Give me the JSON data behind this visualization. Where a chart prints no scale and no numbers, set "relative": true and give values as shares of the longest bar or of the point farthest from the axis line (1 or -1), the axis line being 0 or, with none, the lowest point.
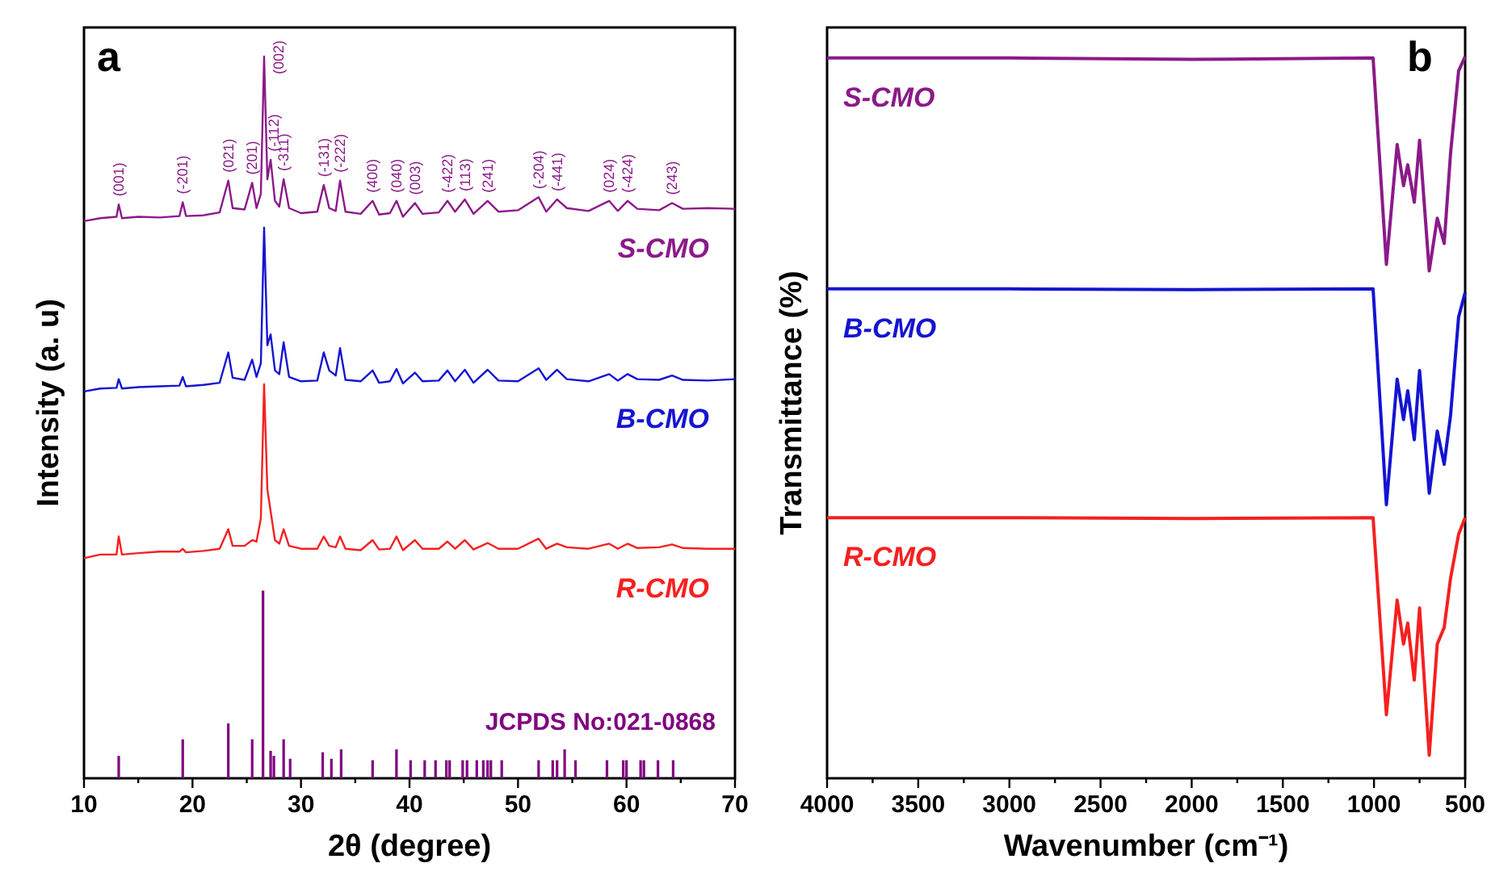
{
  "chart_data": [
    {
      "type": "line",
      "title": "a",
      "xlabel": "2θ (degree)",
      "ylabel": "Intensity (a. u)",
      "relative": true,
      "xlim": [
        10,
        70
      ],
      "xticks": [
        10,
        {
          "value": 15,
          "label": null
        },
        20,
        {
          "value": 25,
          "label": null
        },
        30,
        {
          "value": 35,
          "label": null
        },
        40,
        {
          "value": 45,
          "label": null
        },
        50,
        {
          "value": 55,
          "label": null
        },
        60,
        {
          "value": 65,
          "label": null
        },
        70
      ],
      "x": [
        10,
        11.5,
        13,
        13.2,
        13.5,
        15,
        17,
        18.8,
        19.1,
        19.4,
        21,
        22.5,
        23.3,
        23.7,
        24.8,
        25.5,
        25.9,
        26.3,
        26.6,
        26.9,
        27.2,
        27.6,
        28.0,
        28.4,
        28.9,
        30,
        31.5,
        32.1,
        32.6,
        33.2,
        33.6,
        34.1,
        35.5,
        36.6,
        37.2,
        38.2,
        38.8,
        39.4,
        40.5,
        41.2,
        42.7,
        43.5,
        44.2,
        45.1,
        45.9,
        47.2,
        48.2,
        50,
        51.9,
        52.6,
        53.6,
        54.5,
        56.5,
        58.4,
        59.2,
        60.1,
        61,
        63,
        64.2,
        65.2,
        67.5,
        70
      ],
      "series": [
        {
          "name": "S-CMO",
          "color": "#8b1a89",
          "values": [
            0.772,
            0.776,
            0.778,
            0.795,
            0.776,
            0.778,
            0.777,
            0.779,
            0.798,
            0.779,
            0.78,
            0.784,
            0.828,
            0.79,
            0.788,
            0.825,
            0.79,
            0.81,
            1,
            0.83,
            0.857,
            0.8,
            0.792,
            0.83,
            0.79,
            0.783,
            0.785,
            0.822,
            0.79,
            0.786,
            0.828,
            0.785,
            0.782,
            0.8,
            0.781,
            0.783,
            0.8,
            0.778,
            0.797,
            0.782,
            0.784,
            0.8,
            0.785,
            0.802,
            0.782,
            0.8,
            0.785,
            0.787,
            0.805,
            0.785,
            0.802,
            0.79,
            0.786,
            0.8,
            0.786,
            0.8,
            0.789,
            0.787,
            0.797,
            0.789,
            0.79,
            0.789
          ]
        },
        {
          "name": "B-CMO",
          "color": "#1414d2",
          "values": [
            0.536,
            0.54,
            0.541,
            0.553,
            0.54,
            0.542,
            0.543,
            0.544,
            0.556,
            0.543,
            0.545,
            0.548,
            0.59,
            0.555,
            0.552,
            0.58,
            0.556,
            0.575,
            0.763,
            0.6,
            0.615,
            0.565,
            0.56,
            0.604,
            0.556,
            0.55,
            0.551,
            0.59,
            0.565,
            0.558,
            0.596,
            0.552,
            0.55,
            0.565,
            0.548,
            0.55,
            0.567,
            0.547,
            0.562,
            0.55,
            0.551,
            0.565,
            0.55,
            0.566,
            0.548,
            0.566,
            0.551,
            0.55,
            0.568,
            0.552,
            0.566,
            0.553,
            0.55,
            0.56,
            0.551,
            0.56,
            0.553,
            0.552,
            0.558,
            0.552,
            0.551,
            0.553
          ]
        },
        {
          "name": "R-CMO",
          "color": "#f52020",
          "values": [
            0.305,
            0.31,
            0.31,
            0.335,
            0.31,
            0.312,
            0.314,
            0.314,
            0.318,
            0.313,
            0.315,
            0.318,
            0.345,
            0.322,
            0.322,
            0.33,
            0.328,
            0.36,
            0.546,
            0.4,
            0.37,
            0.33,
            0.325,
            0.345,
            0.322,
            0.318,
            0.318,
            0.335,
            0.322,
            0.32,
            0.335,
            0.318,
            0.316,
            0.33,
            0.317,
            0.318,
            0.335,
            0.316,
            0.33,
            0.318,
            0.318,
            0.328,
            0.318,
            0.33,
            0.317,
            0.326,
            0.318,
            0.318,
            0.332,
            0.318,
            0.325,
            0.32,
            0.318,
            0.325,
            0.318,
            0.325,
            0.319,
            0.32,
            0.324,
            0.319,
            0.318,
            0.318
          ]
        },
        {
          "name": "JCPDS No:021-0868",
          "type": "bar",
          "color": "#800080",
          "x": [
            13.2,
            19.1,
            23.3,
            25.5,
            26.5,
            27.2,
            27.5,
            28.4,
            29.0,
            32.0,
            32.8,
            33.7,
            36.6,
            38.8,
            40.1,
            41.4,
            42.4,
            43.4,
            43.7,
            44.9,
            45.3,
            46.2,
            46.8,
            47.2,
            47.5,
            48.5,
            51.9,
            53.2,
            53.6,
            54.3,
            55.3,
            58.2,
            59.7,
            60.0,
            61.3,
            61.6,
            62.9,
            64.3
          ],
          "values": [
            0.031,
            0.054,
            0.076,
            0.054,
            0.26,
            0.038,
            0.031,
            0.054,
            0.027,
            0.036,
            0.027,
            0.04,
            0.025,
            0.04,
            0.025,
            0.025,
            0.025,
            0.025,
            0.025,
            0.025,
            0.025,
            0.025,
            0.025,
            0.025,
            0.025,
            0.025,
            0.025,
            0.025,
            0.025,
            0.04,
            0.025,
            0.025,
            0.025,
            0.025,
            0.025,
            0.025,
            0.025,
            0.025
          ]
        }
      ],
      "annotations": [
        {
          "text": "(001)",
          "x": 13.2,
          "y": 0.795
        },
        {
          "text": "(-201)",
          "x": 19.1,
          "y": 0.798
        },
        {
          "text": "(021)",
          "x": 23.3,
          "y": 0.828
        },
        {
          "text": "(201)",
          "x": 25.5,
          "y": 0.825
        },
        {
          "text": "(002)",
          "x": 26.6,
          "y": 1
        },
        {
          "text": "(-112)",
          "x": 27.2,
          "y": 0.857
        },
        {
          "text": "(-311)",
          "x": 28.4,
          "y": 0.83
        },
        {
          "text": "(-131)",
          "x": 32.1,
          "y": 0.822
        },
        {
          "text": "(-222)",
          "x": 33.6,
          "y": 0.828
        },
        {
          "text": "(400)",
          "x": 36.6,
          "y": 0.8
        },
        {
          "text": "(040)",
          "x": 38.8,
          "y": 0.8
        },
        {
          "text": "(003)",
          "x": 40.5,
          "y": 0.797
        },
        {
          "text": "(-422)",
          "x": 43.5,
          "y": 0.8
        },
        {
          "text": "(113)",
          "x": 45.1,
          "y": 0.802
        },
        {
          "text": "(241)",
          "x": 47.2,
          "y": 0.8
        },
        {
          "text": "(-204)",
          "x": 51.9,
          "y": 0.805
        },
        {
          "text": "(-441)",
          "x": 53.6,
          "y": 0.802
        },
        {
          "text": "(024)",
          "x": 58.4,
          "y": 0.8
        },
        {
          "text": "(-424)",
          "x": 60.1,
          "y": 0.8
        },
        {
          "text": "(243)",
          "x": 64.2,
          "y": 0.797
        }
      ]
    },
    {
      "type": "line",
      "title": "b",
      "xlabel": "Wavenumber (cm⁻¹)",
      "ylabel": "Transmittance (%)",
      "relative": true,
      "xlim": [
        4000,
        500
      ],
      "xticks": [
        4000,
        {
          "value": 3750,
          "label": null
        },
        3500,
        {
          "value": 3250,
          "label": null
        },
        3000,
        {
          "value": 2750,
          "label": null
        },
        2500,
        {
          "value": 2250,
          "label": null
        },
        2000,
        {
          "value": 1750,
          "label": null
        },
        1500,
        {
          "value": 1250,
          "label": null
        },
        1000,
        {
          "value": 750,
          "label": null
        },
        500
      ],
      "x": [
        4000,
        3000,
        2000,
        1005,
        932,
        873,
        838,
        815,
        779,
        750,
        697,
        653,
        615,
        580,
        536,
        500
      ],
      "series": [
        {
          "name": "S-CMO",
          "color": "#8b1a89",
          "values": [
            0.998,
            0.998,
            0.996,
            0.998,
            0.712,
            0.878,
            0.821,
            0.85,
            0.798,
            0.884,
            0.703,
            0.776,
            0.741,
            0.866,
            0.98,
            1
          ]
        },
        {
          "name": "B-CMO",
          "color": "#1414d2",
          "values": [
            0.678,
            0.678,
            0.677,
            0.678,
            0.379,
            0.553,
            0.497,
            0.537,
            0.469,
            0.565,
            0.395,
            0.481,
            0.435,
            0.503,
            0.639,
            0.673
          ]
        },
        {
          "name": "R-CMO",
          "color": "#f52020",
          "values": [
            0.361,
            0.361,
            0.36,
            0.361,
            0.088,
            0.247,
            0.186,
            0.215,
            0.136,
            0.236,
            0.032,
            0.186,
            0.209,
            0.277,
            0.338,
            0.361
          ]
        }
      ]
    }
  ]
}
